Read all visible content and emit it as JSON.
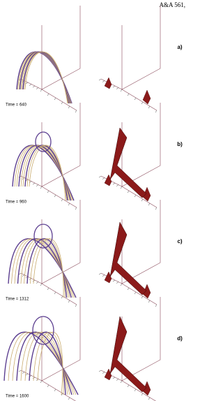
{
  "header": {
    "title": "A&A 561,"
  },
  "panels": [
    {
      "label": "a)",
      "time": "Time = 640"
    },
    {
      "label": "b)",
      "time": "Time = 960"
    },
    {
      "label": "c)",
      "time": "Time = 1312"
    },
    {
      "label": "d)",
      "time": "Time = 1600"
    }
  ]
}
